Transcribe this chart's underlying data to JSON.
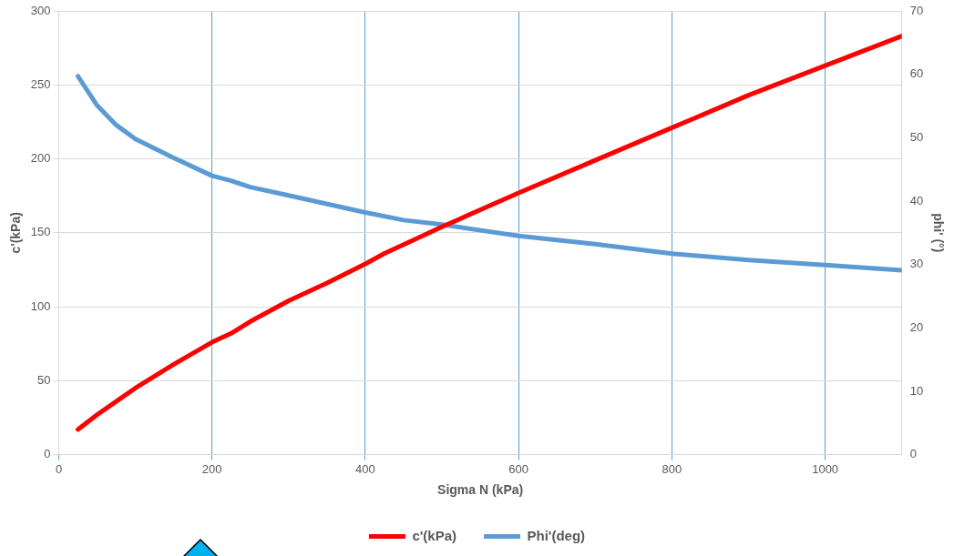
{
  "chart_data": {
    "type": "line",
    "xlabel": "Sigma N (kPa)",
    "ylabel": "c'(kPa)",
    "y2label": "phi' (°)",
    "xlim": [
      0,
      1100
    ],
    "xticks": [
      0,
      200,
      400,
      600,
      800,
      1000
    ],
    "ylim": [
      0,
      300
    ],
    "yticks": [
      0,
      50,
      100,
      150,
      200,
      250,
      300
    ],
    "y2lim": [
      0,
      70
    ],
    "y2ticks": [
      0,
      10,
      20,
      30,
      40,
      50,
      60,
      70
    ],
    "grid": true,
    "legend": "bottom",
    "marker": "none",
    "line_style": "solid",
    "series": [
      {
        "name": "c'(kPa)",
        "color": "#ff0000",
        "x": [
          25,
          50,
          75,
          100,
          150,
          200,
          225,
          250,
          300,
          350,
          400,
          425,
          450,
          500,
          600,
          700,
          800,
          900,
          1000,
          1100
        ],
        "values": [
          17,
          27,
          36,
          45,
          61,
          76,
          82,
          90,
          104,
          116,
          129,
          136,
          142,
          154,
          177,
          199,
          221,
          243,
          263,
          283
        ]
      },
      {
        "name": "Phi'(deg)",
        "color": "#5b9bd5",
        "axis": "y2",
        "x": [
          25,
          50,
          75,
          100,
          150,
          200,
          225,
          250,
          300,
          400,
          450,
          500,
          600,
          700,
          800,
          900,
          1000,
          1100
        ],
        "values": [
          59.7,
          55.1,
          52,
          49.8,
          46.8,
          44,
          43.2,
          42.2,
          40.9,
          38.2,
          37,
          36.3,
          34.5,
          33.2,
          31.7,
          30.7,
          29.9,
          29.1
        ]
      }
    ]
  }
}
